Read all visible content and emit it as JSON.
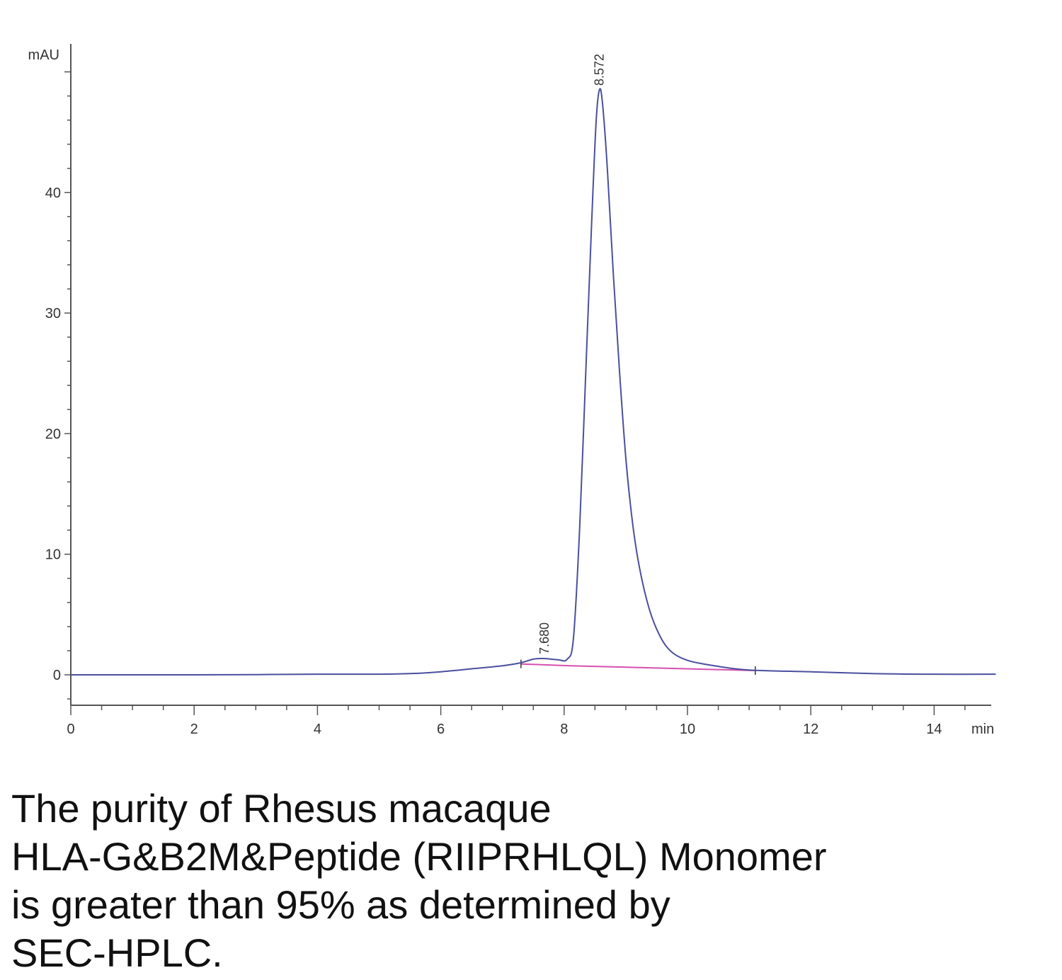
{
  "chart_data": {
    "type": "line",
    "ylabel": "mAU",
    "xlabel": "min",
    "xlim": [
      0,
      15
    ],
    "ylim": [
      -2.5,
      52
    ],
    "x_ticks": [
      "0",
      "2",
      "4",
      "6",
      "8",
      "10",
      "12",
      "14"
    ],
    "y_ticks": [
      "0",
      "10",
      "20",
      "30",
      "40"
    ],
    "series": [
      {
        "color": "#4a4f9e",
        "points": [
          [
            0,
            0
          ],
          [
            1,
            0
          ],
          [
            2,
            0
          ],
          [
            3,
            0.02
          ],
          [
            4,
            0.05
          ],
          [
            5,
            0.05
          ],
          [
            5.5,
            0.1
          ],
          [
            6,
            0.25
          ],
          [
            6.5,
            0.5
          ],
          [
            7,
            0.75
          ],
          [
            7.3,
            1.0
          ],
          [
            7.5,
            1.3
          ],
          [
            7.68,
            1.35
          ],
          [
            7.9,
            1.25
          ],
          [
            8.05,
            1.3
          ],
          [
            8.15,
            3
          ],
          [
            8.25,
            12
          ],
          [
            8.35,
            25
          ],
          [
            8.45,
            38
          ],
          [
            8.52,
            46
          ],
          [
            8.572,
            48.5
          ],
          [
            8.62,
            47.5
          ],
          [
            8.7,
            42
          ],
          [
            8.8,
            33
          ],
          [
            8.9,
            25
          ],
          [
            9.0,
            18
          ],
          [
            9.1,
            13
          ],
          [
            9.2,
            9.5
          ],
          [
            9.35,
            6
          ],
          [
            9.5,
            3.8
          ],
          [
            9.7,
            2.1
          ],
          [
            10.0,
            1.2
          ],
          [
            10.5,
            0.7
          ],
          [
            11,
            0.4
          ],
          [
            12,
            0.25
          ],
          [
            13,
            0.1
          ],
          [
            14,
            0.05
          ],
          [
            15,
            0.05
          ]
        ]
      }
    ],
    "baselines": [
      {
        "color": "#d64fb0",
        "points": [
          [
            7.3,
            0.9
          ],
          [
            8.1,
            0.75
          ],
          [
            11.1,
            0.35
          ]
        ]
      }
    ],
    "peak_labels": [
      {
        "x": 7.68,
        "y": 1.35,
        "text": "7.680"
      },
      {
        "x": 8.572,
        "y": 48.5,
        "text": "8.572"
      }
    ]
  },
  "caption_lines": [
    "The purity of Rhesus macaque",
    "HLA-G&B2M&Peptide (RIIPRHLQL) Monomer",
    "is greater than 95% as determined by",
    "SEC-HPLC."
  ]
}
